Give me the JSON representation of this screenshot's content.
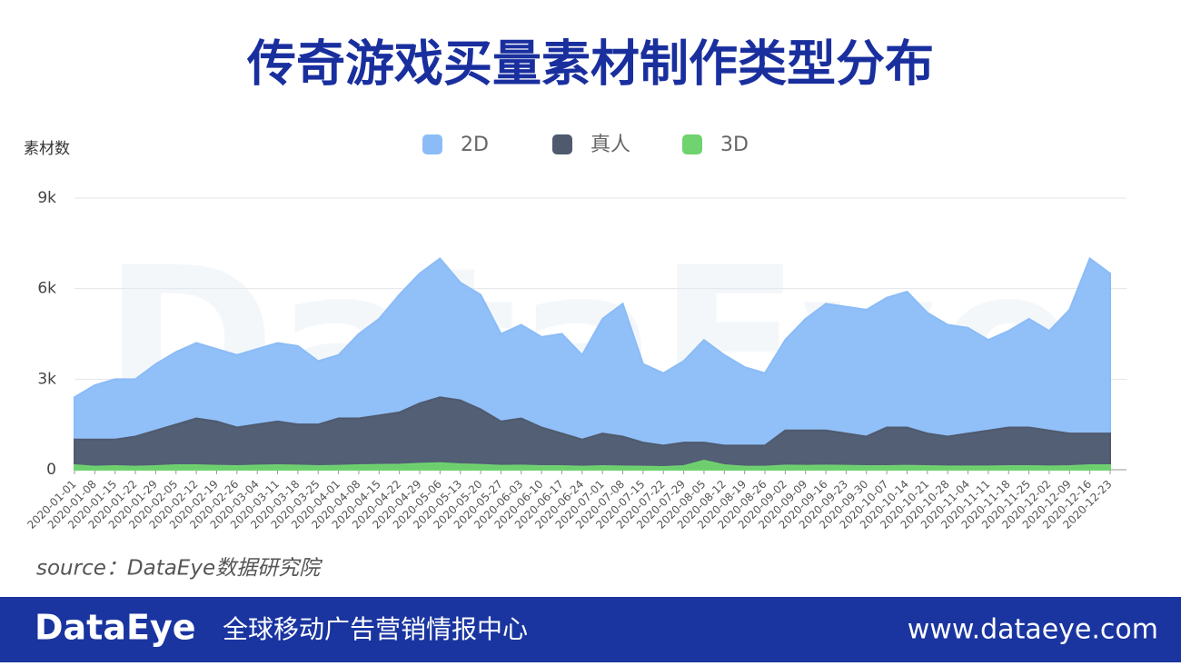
{
  "chart_data": {
    "type": "area",
    "title": "传奇游戏买量素材制作类型分布",
    "y_label": "素材数",
    "watermark": "DataEye",
    "categories": [
      "2020-01-01",
      "2020-01-08",
      "2020-01-15",
      "2020-01-22",
      "2020-01-29",
      "2020-02-05",
      "2020-02-12",
      "2020-02-19",
      "2020-02-26",
      "2020-03-04",
      "2020-03-11",
      "2020-03-18",
      "2020-03-25",
      "2020-04-01",
      "2020-04-08",
      "2020-04-15",
      "2020-04-22",
      "2020-04-29",
      "2020-05-06",
      "2020-05-13",
      "2020-05-20",
      "2020-05-27",
      "2020-06-03",
      "2020-06-10",
      "2020-06-17",
      "2020-06-24",
      "2020-07-01",
      "2020-07-08",
      "2020-07-15",
      "2020-07-22",
      "2020-07-29",
      "2020-08-05",
      "2020-08-12",
      "2020-08-19",
      "2020-08-26",
      "2020-09-02",
      "2020-09-09",
      "2020-09-16",
      "2020-09-23",
      "2020-09-30",
      "2020-10-07",
      "2020-10-14",
      "2020-10-21",
      "2020-10-28",
      "2020-11-04",
      "2020-11-11",
      "2020-11-18",
      "2020-11-25",
      "2020-12-02",
      "2020-12-09",
      "2020-12-16",
      "2020-12-23"
    ],
    "series": [
      {
        "name": "2D",
        "color": "#8bbcf7",
        "values": [
          2400,
          2800,
          3000,
          3000,
          3500,
          3900,
          4200,
          4000,
          3800,
          4000,
          4200,
          4100,
          3600,
          3800,
          4500,
          5000,
          5800,
          6500,
          7000,
          6200,
          5800,
          4500,
          4800,
          4400,
          4500,
          3800,
          5000,
          5500,
          3500,
          3200,
          3600,
          4300,
          3800,
          3400,
          3200,
          4300,
          5000,
          5500,
          5400,
          5300,
          5700,
          5900,
          5200,
          4800,
          4700,
          4300,
          4600,
          5000,
          4600,
          5300,
          7000,
          6500
        ]
      },
      {
        "name": "真人",
        "color": "#4f5a6e",
        "values": [
          1000,
          1000,
          1000,
          1100,
          1300,
          1500,
          1700,
          1600,
          1400,
          1500,
          1600,
          1500,
          1500,
          1700,
          1700,
          1800,
          1900,
          2200,
          2400,
          2300,
          2000,
          1600,
          1700,
          1400,
          1200,
          1000,
          1200,
          1100,
          900,
          800,
          900,
          900,
          800,
          800,
          800,
          1300,
          1300,
          1300,
          1200,
          1100,
          1400,
          1400,
          1200,
          1100,
          1200,
          1300,
          1400,
          1400,
          1300,
          1200,
          1200,
          1200
        ]
      },
      {
        "name": "3D",
        "color": "#6fd36f",
        "values": [
          150,
          100,
          120,
          100,
          120,
          150,
          150,
          130,
          120,
          140,
          150,
          140,
          120,
          130,
          150,
          160,
          170,
          200,
          220,
          180,
          160,
          130,
          140,
          120,
          120,
          100,
          120,
          110,
          100,
          90,
          120,
          300,
          150,
          100,
          100,
          140,
          130,
          140,
          130,
          120,
          120,
          130,
          120,
          110,
          110,
          110,
          120,
          120,
          110,
          120,
          150,
          150
        ]
      }
    ],
    "ylim": [
      0,
      9000
    ],
    "yticks": [
      {
        "value": 0,
        "label": "0"
      },
      {
        "value": 3000,
        "label": "3k"
      },
      {
        "value": 6000,
        "label": "6k"
      },
      {
        "value": 9000,
        "label": "9k"
      }
    ],
    "grid": true
  },
  "source": "source：DataEye数据研究院",
  "footer": {
    "brand": "DataEye",
    "tagline": "全球移动广告营销情报中心",
    "url": "www.dataeye.com"
  }
}
